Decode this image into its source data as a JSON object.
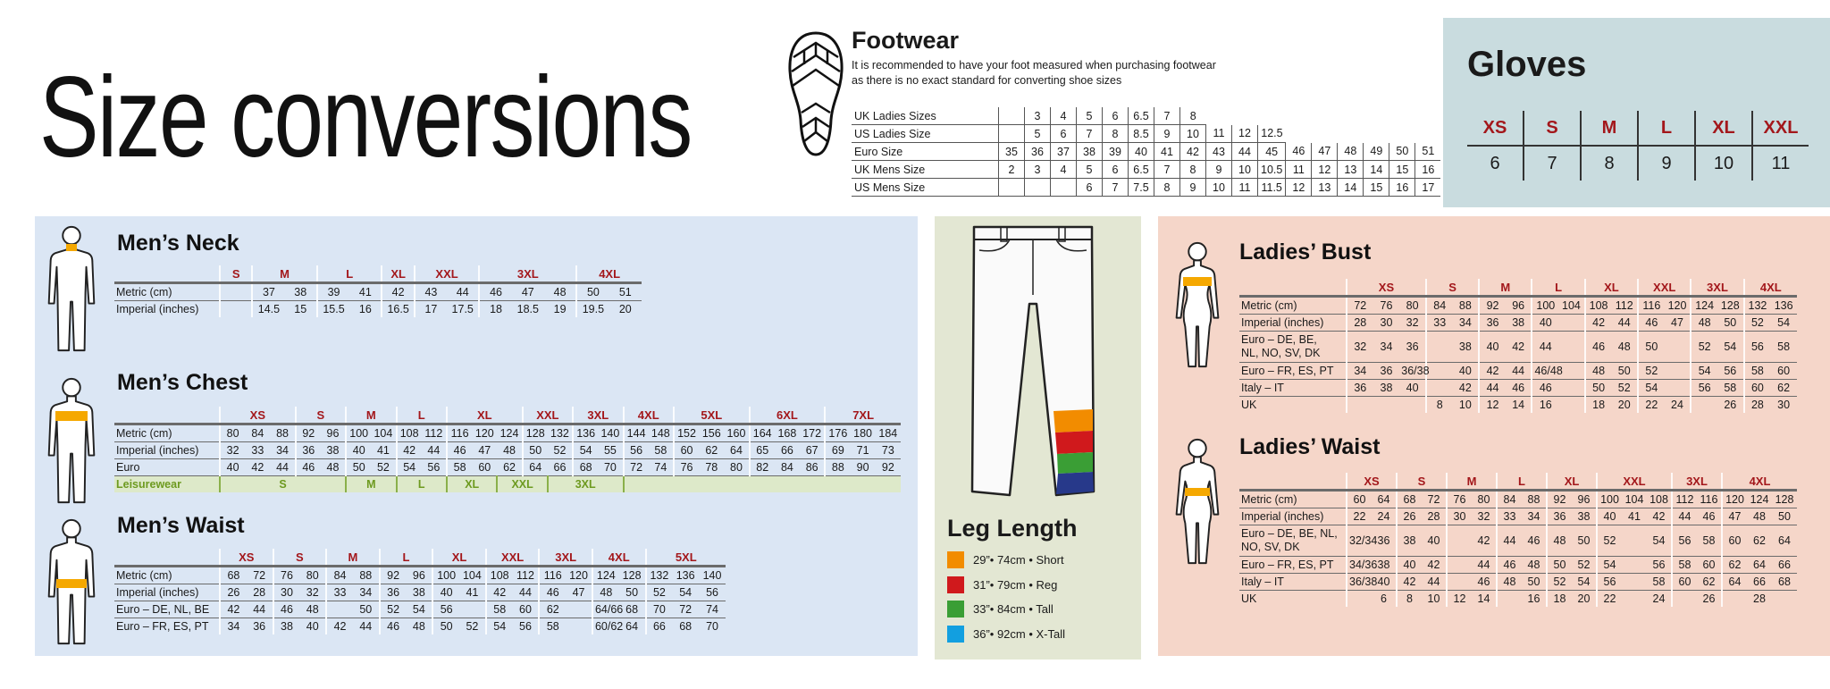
{
  "title": "Size conversions",
  "footwear": {
    "title": "Footwear",
    "note_line1": "It is recommended to have your foot measured when purchasing footwear",
    "note_line2": "as there is no exact standard for converting shoe sizes",
    "rows": [
      {
        "label": "UK Ladies Sizes",
        "values": [
          "",
          "3",
          "4",
          "5",
          "6",
          "6.5",
          "7",
          "8"
        ]
      },
      {
        "label": "US Ladies Size",
        "values": [
          "",
          "5",
          "6",
          "7",
          "8",
          "8.5",
          "9",
          "10",
          "11",
          "12",
          "12.5"
        ]
      },
      {
        "label": "Euro Size",
        "values": [
          "35",
          "36",
          "37",
          "38",
          "39",
          "40",
          "41",
          "42",
          "43",
          "44",
          "45",
          "46",
          "47",
          "48",
          "49",
          "50",
          "51"
        ]
      },
      {
        "label": "UK Mens Size",
        "values": [
          "2",
          "3",
          "4",
          "5",
          "6",
          "6.5",
          "7",
          "8",
          "9",
          "10",
          "10.5",
          "11",
          "12",
          "13",
          "14",
          "15",
          "16"
        ]
      },
      {
        "label": "US Mens Size",
        "values": [
          "",
          "",
          "",
          "6",
          "7",
          "7.5",
          "8",
          "9",
          "10",
          "11",
          "11.5",
          "12",
          "13",
          "14",
          "15",
          "16",
          "17"
        ]
      }
    ]
  },
  "gloves": {
    "title": "Gloves",
    "sizes": [
      "XS",
      "S",
      "M",
      "L",
      "XL",
      "XXL"
    ],
    "values": [
      "6",
      "7",
      "8",
      "9",
      "10",
      "11"
    ]
  },
  "mens_neck": {
    "title": "Men’s Neck",
    "sizes": [
      {
        "label": "S",
        "span": 1
      },
      {
        "label": "M",
        "span": 2
      },
      {
        "label": "L",
        "span": 2
      },
      {
        "label": "XL",
        "span": 1
      },
      {
        "label": "XXL",
        "span": 2
      },
      {
        "label": "3XL",
        "span": 3
      },
      {
        "label": "4XL",
        "span": 2
      }
    ],
    "rows": [
      {
        "label": "Metric (cm)",
        "values": [
          "",
          "37",
          "38",
          "39",
          "41",
          "42",
          "43",
          "44",
          "46",
          "47",
          "48",
          "50",
          "51"
        ]
      },
      {
        "label": "Imperial (inches)",
        "values": [
          "",
          "14.5",
          "15",
          "15.5",
          "16",
          "16.5",
          "17",
          "17.5",
          "18",
          "18.5",
          "19",
          "19.5",
          "20"
        ]
      }
    ]
  },
  "mens_chest": {
    "title": "Men’s Chest",
    "sizes": [
      {
        "label": "XS",
        "span": 3
      },
      {
        "label": "S",
        "span": 2
      },
      {
        "label": "M",
        "span": 2
      },
      {
        "label": "L",
        "span": 2
      },
      {
        "label": "XL",
        "span": 3
      },
      {
        "label": "XXL",
        "span": 2
      },
      {
        "label": "3XL",
        "span": 2
      },
      {
        "label": "4XL",
        "span": 2
      },
      {
        "label": "5XL",
        "span": 3
      },
      {
        "label": "6XL",
        "span": 3
      },
      {
        "label": "7XL",
        "span": 3
      }
    ],
    "rows": [
      {
        "label": "Metric (cm)",
        "values": [
          "80",
          "84",
          "88",
          "92",
          "96",
          "100",
          "104",
          "108",
          "112",
          "116",
          "120",
          "124",
          "128",
          "132",
          "136",
          "140",
          "144",
          "148",
          "152",
          "156",
          "160",
          "164",
          "168",
          "172",
          "176",
          "180",
          "184"
        ]
      },
      {
        "label": "Imperial (inches)",
        "values": [
          "32",
          "33",
          "34",
          "36",
          "38",
          "40",
          "41",
          "42",
          "44",
          "46",
          "47",
          "48",
          "50",
          "52",
          "54",
          "55",
          "56",
          "58",
          "60",
          "62",
          "64",
          "65",
          "66",
          "67",
          "69",
          "71",
          "73"
        ]
      },
      {
        "label": "Euro",
        "values": [
          "40",
          "42",
          "44",
          "46",
          "48",
          "50",
          "52",
          "54",
          "56",
          "58",
          "60",
          "62",
          "64",
          "66",
          "68",
          "70",
          "72",
          "74",
          "76",
          "78",
          "80",
          "82",
          "84",
          "86",
          "88",
          "90",
          "92"
        ]
      }
    ],
    "leisure": {
      "label": "Leisurewear",
      "groups": [
        {
          "label": "S",
          "span": 5
        },
        {
          "label": "M",
          "span": 2
        },
        {
          "label": "L",
          "span": 2
        },
        {
          "label": "XL",
          "span": 2
        },
        {
          "label": "XXL",
          "span": 2
        },
        {
          "label": "3XL",
          "span": 3
        },
        {
          "label": "",
          "span": 11
        }
      ]
    }
  },
  "mens_waist": {
    "title": "Men’s Waist",
    "sizes": [
      {
        "label": "XS",
        "span": 2
      },
      {
        "label": "S",
        "span": 2
      },
      {
        "label": "M",
        "span": 2
      },
      {
        "label": "L",
        "span": 2
      },
      {
        "label": "XL",
        "span": 2
      },
      {
        "label": "XXL",
        "span": 2
      },
      {
        "label": "3XL",
        "span": 2
      },
      {
        "label": "4XL",
        "span": 2
      },
      {
        "label": "5XL",
        "span": 3
      }
    ],
    "rows": [
      {
        "label": "Metric (cm)",
        "values": [
          "68",
          "72",
          "76",
          "80",
          "84",
          "88",
          "92",
          "96",
          "100",
          "104",
          "108",
          "112",
          "116",
          "120",
          "124",
          "128",
          "132",
          "136",
          "140"
        ]
      },
      {
        "label": "Imperial (inches)",
        "values": [
          "26",
          "28",
          "30",
          "32",
          "33",
          "34",
          "36",
          "38",
          "40",
          "41",
          "42",
          "44",
          "46",
          "47",
          "48",
          "50",
          "52",
          "54",
          "56"
        ]
      },
      {
        "label": "Euro – DE, NL, BE",
        "values": [
          "42",
          "44",
          "46",
          "48",
          "",
          "50",
          "52",
          "54",
          "56",
          "",
          "58",
          "60",
          "62",
          "",
          "64/66",
          "68",
          "70",
          "72",
          "74"
        ]
      },
      {
        "label": "Euro – FR, ES, PT",
        "values": [
          "34",
          "36",
          "38",
          "40",
          "42",
          "44",
          "46",
          "48",
          "50",
          "52",
          "54",
          "56",
          "58",
          "",
          "60/62",
          "64",
          "66",
          "68",
          "70"
        ]
      }
    ]
  },
  "leg_length": {
    "title": "Leg Length",
    "items": [
      {
        "label": "29”• 74cm • Short",
        "color": "#f28c00"
      },
      {
        "label": "31”• 79cm • Reg",
        "color": "#d0191c"
      },
      {
        "label": "33”• 84cm • Tall",
        "color": "#3a9e35"
      },
      {
        "label": "36”• 92cm • X-Tall",
        "color": "#129fe0"
      }
    ]
  },
  "ladies_bust": {
    "title": "Ladies’ Bust",
    "sizes": [
      {
        "label": "XS",
        "span": 3
      },
      {
        "label": "S",
        "span": 2
      },
      {
        "label": "M",
        "span": 2
      },
      {
        "label": "L",
        "span": 2
      },
      {
        "label": "XL",
        "span": 2
      },
      {
        "label": "XXL",
        "span": 2
      },
      {
        "label": "3XL",
        "span": 2
      },
      {
        "label": "4XL",
        "span": 2
      }
    ],
    "rows": [
      {
        "label": "Metric (cm)",
        "values": [
          "72",
          "76",
          "80",
          "84",
          "88",
          "92",
          "96",
          "100",
          "104",
          "108",
          "112",
          "116",
          "120",
          "124",
          "128",
          "132",
          "136"
        ]
      },
      {
        "label": "Imperial (inches)",
        "values": [
          "28",
          "30",
          "32",
          "33",
          "34",
          "36",
          "38",
          "40",
          "",
          "42",
          "44",
          "46",
          "47",
          "48",
          "50",
          "52",
          "54"
        ]
      },
      {
        "label": "Euro – DE, BE,\nNL, NO, SV, DK",
        "values": [
          "32",
          "34",
          "36",
          "",
          "38",
          "40",
          "42",
          "44",
          "",
          "46",
          "48",
          "50",
          "",
          "52",
          "54",
          "56",
          "58"
        ]
      },
      {
        "label": "Euro – FR, ES, PT",
        "values": [
          "34",
          "36",
          "36/38",
          "",
          "40",
          "42",
          "44",
          "46/48",
          "",
          "48",
          "50",
          "52",
          "",
          "54",
          "56",
          "58",
          "60"
        ]
      },
      {
        "label": "Italy – IT",
        "values": [
          "36",
          "38",
          "40",
          "",
          "42",
          "44",
          "46",
          "46",
          "",
          "50",
          "52",
          "54",
          "",
          "56",
          "58",
          "60",
          "62"
        ]
      },
      {
        "label": "UK",
        "values": [
          "",
          "",
          "",
          "8",
          "10",
          "12",
          "14",
          "16",
          "",
          "18",
          "20",
          "22",
          "24",
          "",
          "26",
          "28",
          "30"
        ]
      }
    ]
  },
  "ladies_waist": {
    "title": "Ladies’ Waist",
    "sizes": [
      {
        "label": "XS",
        "span": 2
      },
      {
        "label": "S",
        "span": 2
      },
      {
        "label": "M",
        "span": 2
      },
      {
        "label": "L",
        "span": 2
      },
      {
        "label": "XL",
        "span": 2
      },
      {
        "label": "XXL",
        "span": 3
      },
      {
        "label": "3XL",
        "span": 2
      },
      {
        "label": "4XL",
        "span": 3
      }
    ],
    "rows": [
      {
        "label": "Metric (cm)",
        "values": [
          "60",
          "64",
          "68",
          "72",
          "76",
          "80",
          "84",
          "88",
          "92",
          "96",
          "100",
          "104",
          "108",
          "112",
          "116",
          "120",
          "124",
          "128"
        ]
      },
      {
        "label": "Imperial (inches)",
        "values": [
          "22",
          "24",
          "26",
          "28",
          "30",
          "32",
          "33",
          "34",
          "36",
          "38",
          "40",
          "41",
          "42",
          "44",
          "46",
          "47",
          "48",
          "50"
        ]
      },
      {
        "label": "Euro – DE, BE, NL,\nNO, SV, DK",
        "values": [
          "32/34",
          "36",
          "38",
          "40",
          "",
          "42",
          "44",
          "46",
          "48",
          "50",
          "52",
          "",
          "54",
          "56",
          "58",
          "60",
          "62",
          "64"
        ]
      },
      {
        "label": "Euro – FR, ES, PT",
        "values": [
          "34/36",
          "38",
          "40",
          "42",
          "",
          "44",
          "46",
          "48",
          "50",
          "52",
          "54",
          "",
          "56",
          "58",
          "60",
          "62",
          "64",
          "66"
        ]
      },
      {
        "label": "Italy – IT",
        "values": [
          "36/38",
          "40",
          "42",
          "44",
          "",
          "46",
          "48",
          "50",
          "52",
          "54",
          "56",
          "",
          "58",
          "60",
          "62",
          "64",
          "66",
          "68"
        ]
      },
      {
        "label": "UK",
        "values": [
          "",
          "6",
          "8",
          "10",
          "12",
          "14",
          "",
          "16",
          "18",
          "20",
          "22",
          "",
          "24",
          "",
          "26",
          "",
          "28",
          ""
        ]
      }
    ]
  },
  "colors": {
    "size_label": "#a3171b",
    "band": "#f5a800",
    "men_bg": "#dbe6f4",
    "ladies_bg": "#f5d6c9",
    "leg_bg": "#e3e7d3",
    "gloves_bg": "#c9dcdf",
    "leisure_text": "#6d9a1f"
  }
}
